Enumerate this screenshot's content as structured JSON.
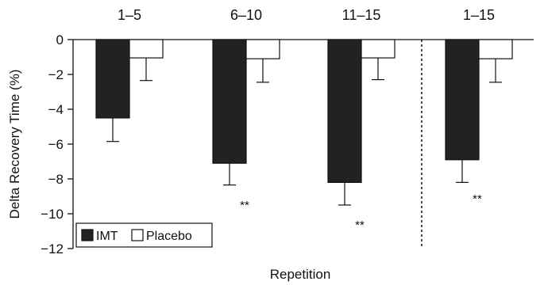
{
  "chart_data": {
    "type": "bar",
    "categories": [
      "1–5",
      "6–10",
      "11–15",
      "1–15"
    ],
    "series": [
      {
        "name": "IMT",
        "values": [
          -4.5,
          -7.1,
          -8.2,
          -6.9
        ],
        "errors": [
          1.35,
          1.25,
          1.3,
          1.3
        ],
        "color": "#222222"
      },
      {
        "name": "Placebo",
        "values": [
          -1.05,
          -1.1,
          -1.05,
          -1.1
        ],
        "errors": [
          1.3,
          1.35,
          1.25,
          1.35
        ],
        "color": "#ffffff"
      }
    ],
    "significance": [
      "",
      "**",
      "**",
      "**"
    ],
    "ylabel": "Delta Recovery Time (%)",
    "xlabel": "Repetition",
    "ylim": [
      -12,
      0
    ],
    "yticks": [
      0,
      -2,
      -4,
      -6,
      -8,
      -10,
      -12
    ],
    "grid": false,
    "legend": "bottom-left",
    "separator_after_category": 2
  }
}
